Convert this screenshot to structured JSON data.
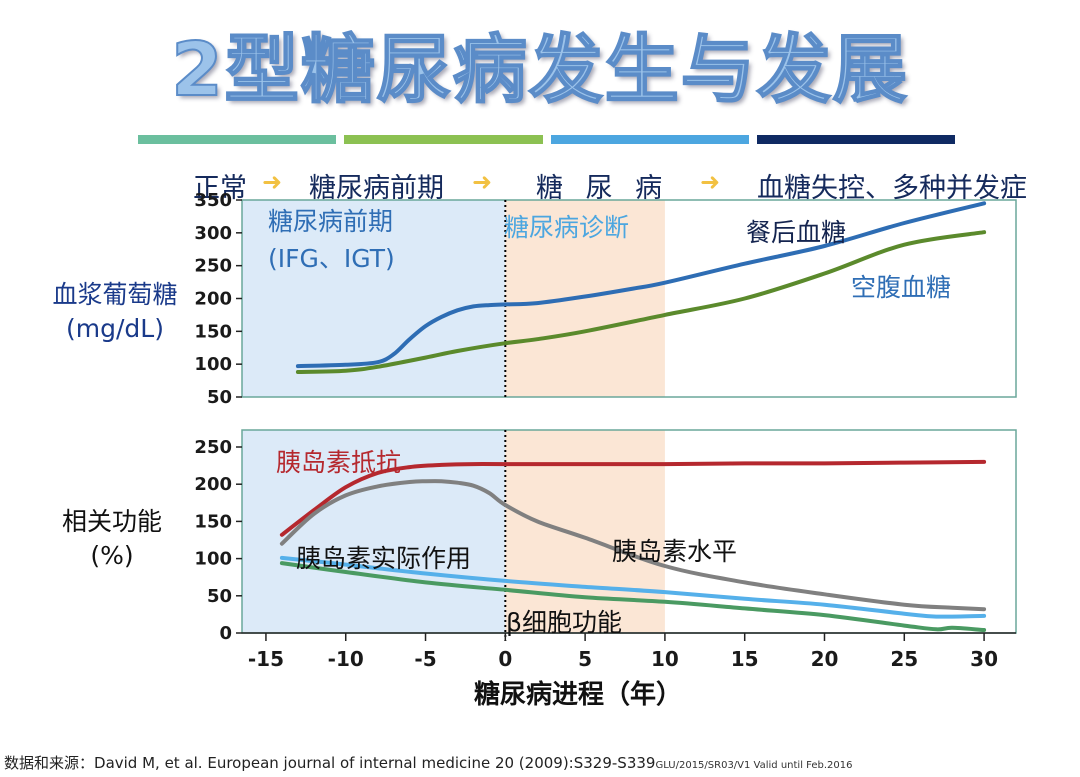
{
  "title": "2型糖尿病发生与发展",
  "stage_colors": [
    "#6bbf9e",
    "#8cc152",
    "#4ca6e0",
    "#0f2a63"
  ],
  "stages": [
    {
      "label": "正常"
    },
    {
      "label": "糖尿病前期"
    },
    {
      "label": "糖 尿 病"
    },
    {
      "label": "血糖失控、多种并发症"
    }
  ],
  "arrow_glyph": "➜",
  "chart_data": [
    {
      "type": "line",
      "ylabel": "血浆葡萄糖\n(mg/dL)",
      "ylabel_line1": "血浆葡萄糖",
      "ylabel_line2": "(mg/dL)",
      "ylim": [
        50,
        350
      ],
      "yticks": [
        50,
        100,
        150,
        200,
        250,
        300,
        350
      ],
      "xlim": [
        -16.5,
        32
      ],
      "regions": [
        {
          "label": "糖尿病前期\n(IFG、IGT)",
          "line1": "糖尿病前期",
          "line2": "(IFG、IGT)",
          "x": [
            -16.5,
            0
          ],
          "color": "#dceaf8"
        },
        {
          "label": "糖尿病诊断",
          "x": [
            0,
            10
          ],
          "color": "#fbe6d5"
        }
      ],
      "divider_x": 0,
      "series": [
        {
          "name": "餐后血糖",
          "color": "#2e6db4",
          "x": [
            -13,
            -10,
            -8,
            -7,
            -6,
            -5,
            -4,
            -3,
            -2,
            -1,
            0,
            2,
            5,
            8,
            10,
            15,
            20,
            25,
            30
          ],
          "values": [
            97,
            99,
            103,
            115,
            138,
            158,
            172,
            182,
            188,
            190,
            191,
            193,
            203,
            215,
            224,
            253,
            280,
            315,
            345
          ]
        },
        {
          "name": "空腹血糖",
          "color": "#5b8a2c",
          "x": [
            -13,
            -10,
            -8,
            -5,
            -3,
            0,
            2,
            5,
            10,
            15,
            20,
            25,
            30
          ],
          "values": [
            88,
            90,
            96,
            110,
            120,
            132,
            138,
            150,
            175,
            200,
            238,
            282,
            301
          ]
        }
      ]
    },
    {
      "type": "line",
      "ylabel": "相关功能\n(%)",
      "ylabel_line1": "相关功能",
      "ylabel_line2": "(%)",
      "xlabel": "糖尿病进程（年）",
      "ylim": [
        0,
        250
      ],
      "yticks": [
        0,
        50,
        100,
        150,
        200,
        250
      ],
      "xlim": [
        -16.5,
        32
      ],
      "xticks": [
        -15,
        -10,
        -5,
        0,
        5,
        10,
        15,
        20,
        25,
        30
      ],
      "regions": [
        {
          "x": [
            -16.5,
            0
          ],
          "color": "#dceaf8"
        },
        {
          "x": [
            0,
            10
          ],
          "color": "#fbe6d5"
        }
      ],
      "divider_x": 0,
      "series": [
        {
          "name": "胰岛素抵抗",
          "color": "#b5282e",
          "x": [
            -14,
            -12,
            -10,
            -8,
            -6,
            -4,
            -2,
            0,
            5,
            10,
            15,
            20,
            25,
            30
          ],
          "values": [
            132,
            165,
            196,
            215,
            223,
            226,
            227,
            227,
            227,
            227,
            228,
            228,
            229,
            230
          ]
        },
        {
          "name": "胰岛素水平",
          "color": "#808080",
          "x": [
            -14,
            -12,
            -10,
            -8,
            -6,
            -5,
            -4,
            -3,
            -2,
            -1,
            0,
            2,
            5,
            10,
            15,
            20,
            25,
            28,
            30
          ],
          "values": [
            120,
            160,
            185,
            197,
            203,
            204,
            204,
            202,
            198,
            188,
            172,
            150,
            128,
            90,
            68,
            52,
            38,
            34,
            32
          ]
        },
        {
          "name": "胰岛素实际作用",
          "color": "#55b0ea",
          "x": [
            -14,
            -10,
            -5,
            0,
            5,
            10,
            15,
            20,
            25,
            27,
            30
          ],
          "values": [
            101,
            92,
            80,
            70,
            62,
            55,
            46,
            38,
            26,
            22,
            23
          ]
        },
        {
          "name": "β细胞功能",
          "color": "#4a9a62",
          "x": [
            -14,
            -10,
            -5,
            0,
            5,
            10,
            15,
            20,
            25,
            27,
            28,
            30
          ],
          "values": [
            94,
            82,
            68,
            58,
            48,
            42,
            33,
            24,
            10,
            5,
            7,
            4
          ]
        }
      ]
    }
  ],
  "footer": {
    "prefix": "数据和来源：",
    "citation": "David M, et al. European journal of internal medicine 20 (2009):S329-S339",
    "note": "GLU/2015/SR03/V1 Valid until Feb.2016"
  }
}
